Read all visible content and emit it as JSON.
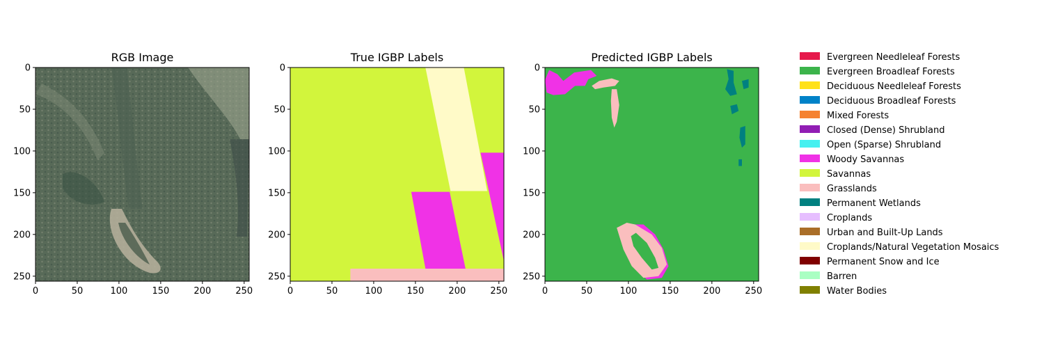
{
  "chart_data": [
    {
      "type": "image",
      "title": "RGB Image",
      "xlim": [
        0,
        256
      ],
      "ylim": [
        256,
        0
      ],
      "xticks": [
        0,
        50,
        100,
        150,
        200,
        250
      ],
      "yticks": [
        0,
        50,
        100,
        150,
        200,
        250
      ]
    },
    {
      "type": "heatmap",
      "title": "True IGBP Labels",
      "xlim": [
        0,
        256
      ],
      "ylim": [
        256,
        0
      ],
      "xticks": [
        0,
        50,
        100,
        150,
        200,
        250
      ],
      "yticks": [
        0,
        50,
        100,
        150,
        200,
        250
      ],
      "regions": [
        {
          "class": "Savannas",
          "x": [
            0,
            256
          ],
          "y": [
            0,
            256
          ]
        },
        {
          "class": "Croplands/Natural Vegetation Mosaics",
          "polygon": [
            [
              162,
              0
            ],
            [
              208,
              0
            ],
            [
              236,
              148
            ],
            [
              192,
              148
            ]
          ]
        },
        {
          "class": "Woody Savannas",
          "polygon": [
            [
              228,
              102
            ],
            [
              256,
              102
            ],
            [
              256,
              232
            ]
          ]
        },
        {
          "class": "Woody Savannas",
          "polygon": [
            [
              145,
              149
            ],
            [
              191,
              149
            ],
            [
              210,
              241
            ],
            [
              162,
              241
            ]
          ]
        },
        {
          "class": "Grasslands",
          "polygon": [
            [
              72,
              241
            ],
            [
              256,
              241
            ],
            [
              256,
              256
            ],
            [
              72,
              256
            ]
          ]
        }
      ]
    },
    {
      "type": "heatmap",
      "title": "Predicted IGBP Labels",
      "xlim": [
        0,
        256
      ],
      "ylim": [
        256,
        0
      ],
      "xticks": [
        0,
        50,
        100,
        150,
        200,
        250
      ],
      "yticks": [
        0,
        50,
        100,
        150,
        200,
        250
      ],
      "dominant_class": "Evergreen Broadleaf Forests",
      "regions": [
        {
          "class": "Woody Savannas",
          "polygon": [
            [
              0,
              15
            ],
            [
              5,
              3
            ],
            [
              15,
              8
            ],
            [
              22,
              16
            ],
            [
              35,
              6
            ],
            [
              55,
              3
            ],
            [
              62,
              10
            ],
            [
              52,
              14
            ],
            [
              48,
              22
            ],
            [
              36,
              22
            ],
            [
              24,
              32
            ],
            [
              10,
              33
            ],
            [
              2,
              30
            ]
          ]
        },
        {
          "class": "Grasslands",
          "polygon": [
            [
              56,
              22
            ],
            [
              65,
              16
            ],
            [
              80,
              13
            ],
            [
              89,
              16
            ],
            [
              84,
              22
            ],
            [
              70,
              24
            ],
            [
              60,
              26
            ]
          ]
        },
        {
          "class": "Grasslands",
          "polygon": [
            [
              80,
              26
            ],
            [
              86,
              26
            ],
            [
              89,
              45
            ],
            [
              86,
              65
            ],
            [
              83,
              72
            ],
            [
              80,
              60
            ],
            [
              79,
              40
            ]
          ]
        },
        {
          "class": "Woody Savannas",
          "polygon": [
            [
              100,
              200
            ],
            [
              104,
              188
            ],
            [
              118,
              188
            ],
            [
              132,
              200
            ],
            [
              142,
              218
            ],
            [
              148,
              238
            ],
            [
              140,
              252
            ],
            [
              122,
              254
            ],
            [
              108,
              240
            ],
            [
              98,
              222
            ]
          ]
        },
        {
          "class": "Grasslands",
          "polygon": [
            [
              86,
              192
            ],
            [
              98,
              186
            ],
            [
              108,
              188
            ],
            [
              128,
              200
            ],
            [
              140,
              216
            ],
            [
              146,
              236
            ],
            [
              136,
              250
            ],
            [
              118,
              252
            ],
            [
              104,
              238
            ],
            [
              94,
              218
            ]
          ]
        },
        {
          "class": "Evergreen Broadleaf Forests",
          "polygon": [
            [
              103,
              202
            ],
            [
              109,
              198
            ],
            [
              122,
              210
            ],
            [
              132,
              228
            ],
            [
              136,
              240
            ],
            [
              128,
              242
            ],
            [
              116,
              228
            ],
            [
              106,
              214
            ]
          ]
        },
        {
          "class": "Permanent Wetlands",
          "polygon": [
            [
              218,
              2
            ],
            [
              226,
              4
            ],
            [
              226,
              18
            ],
            [
              230,
              32
            ],
            [
              222,
              34
            ],
            [
              216,
              26
            ],
            [
              220,
              14
            ]
          ]
        },
        {
          "class": "Permanent Wetlands",
          "polygon": [
            [
              236,
              16
            ],
            [
              244,
              14
            ],
            [
              244,
              24
            ],
            [
              238,
              26
            ]
          ]
        },
        {
          "class": "Permanent Wetlands",
          "polygon": [
            [
              222,
              46
            ],
            [
              230,
              44
            ],
            [
              232,
              52
            ],
            [
              224,
              56
            ]
          ]
        },
        {
          "class": "Permanent Wetlands",
          "polygon": [
            [
              234,
              72
            ],
            [
              240,
              70
            ],
            [
              240,
              92
            ],
            [
              236,
              96
            ],
            [
              233,
              84
            ]
          ]
        },
        {
          "class": "Permanent Wetlands",
          "polygon": [
            [
              232,
              110
            ],
            [
              236,
              110
            ],
            [
              236,
              118
            ],
            [
              232,
              118
            ]
          ]
        }
      ]
    }
  ],
  "legend": {
    "placement": "right",
    "entries": [
      {
        "label": "Evergreen Needleleaf Forests",
        "color": "#e6194b"
      },
      {
        "label": "Evergreen Broadleaf Forests",
        "color": "#3cb44b"
      },
      {
        "label": "Deciduous Needleleaf Forests",
        "color": "#ffe119"
      },
      {
        "label": "Deciduous Broadleaf Forests",
        "color": "#0082c8"
      },
      {
        "label": "Mixed Forests",
        "color": "#f58231"
      },
      {
        "label": "Closed (Dense) Shrubland",
        "color": "#911eb4"
      },
      {
        "label": "Open (Sparse) Shrubland",
        "color": "#46f0f0"
      },
      {
        "label": "Woody Savannas",
        "color": "#f032e6"
      },
      {
        "label": "Savannas",
        "color": "#d2f53c"
      },
      {
        "label": "Grasslands",
        "color": "#fabebe"
      },
      {
        "label": "Permanent Wetlands",
        "color": "#008080"
      },
      {
        "label": "Croplands",
        "color": "#e6beff"
      },
      {
        "label": "Urban and Built-Up Lands",
        "color": "#aa6e28"
      },
      {
        "label": "Croplands/Natural Vegetation Mosaics",
        "color": "#fffac8"
      },
      {
        "label": "Permanent Snow and Ice",
        "color": "#800000"
      },
      {
        "label": "Barren",
        "color": "#aaffc3"
      },
      {
        "label": "Water Bodies",
        "color": "#808000"
      }
    ]
  }
}
